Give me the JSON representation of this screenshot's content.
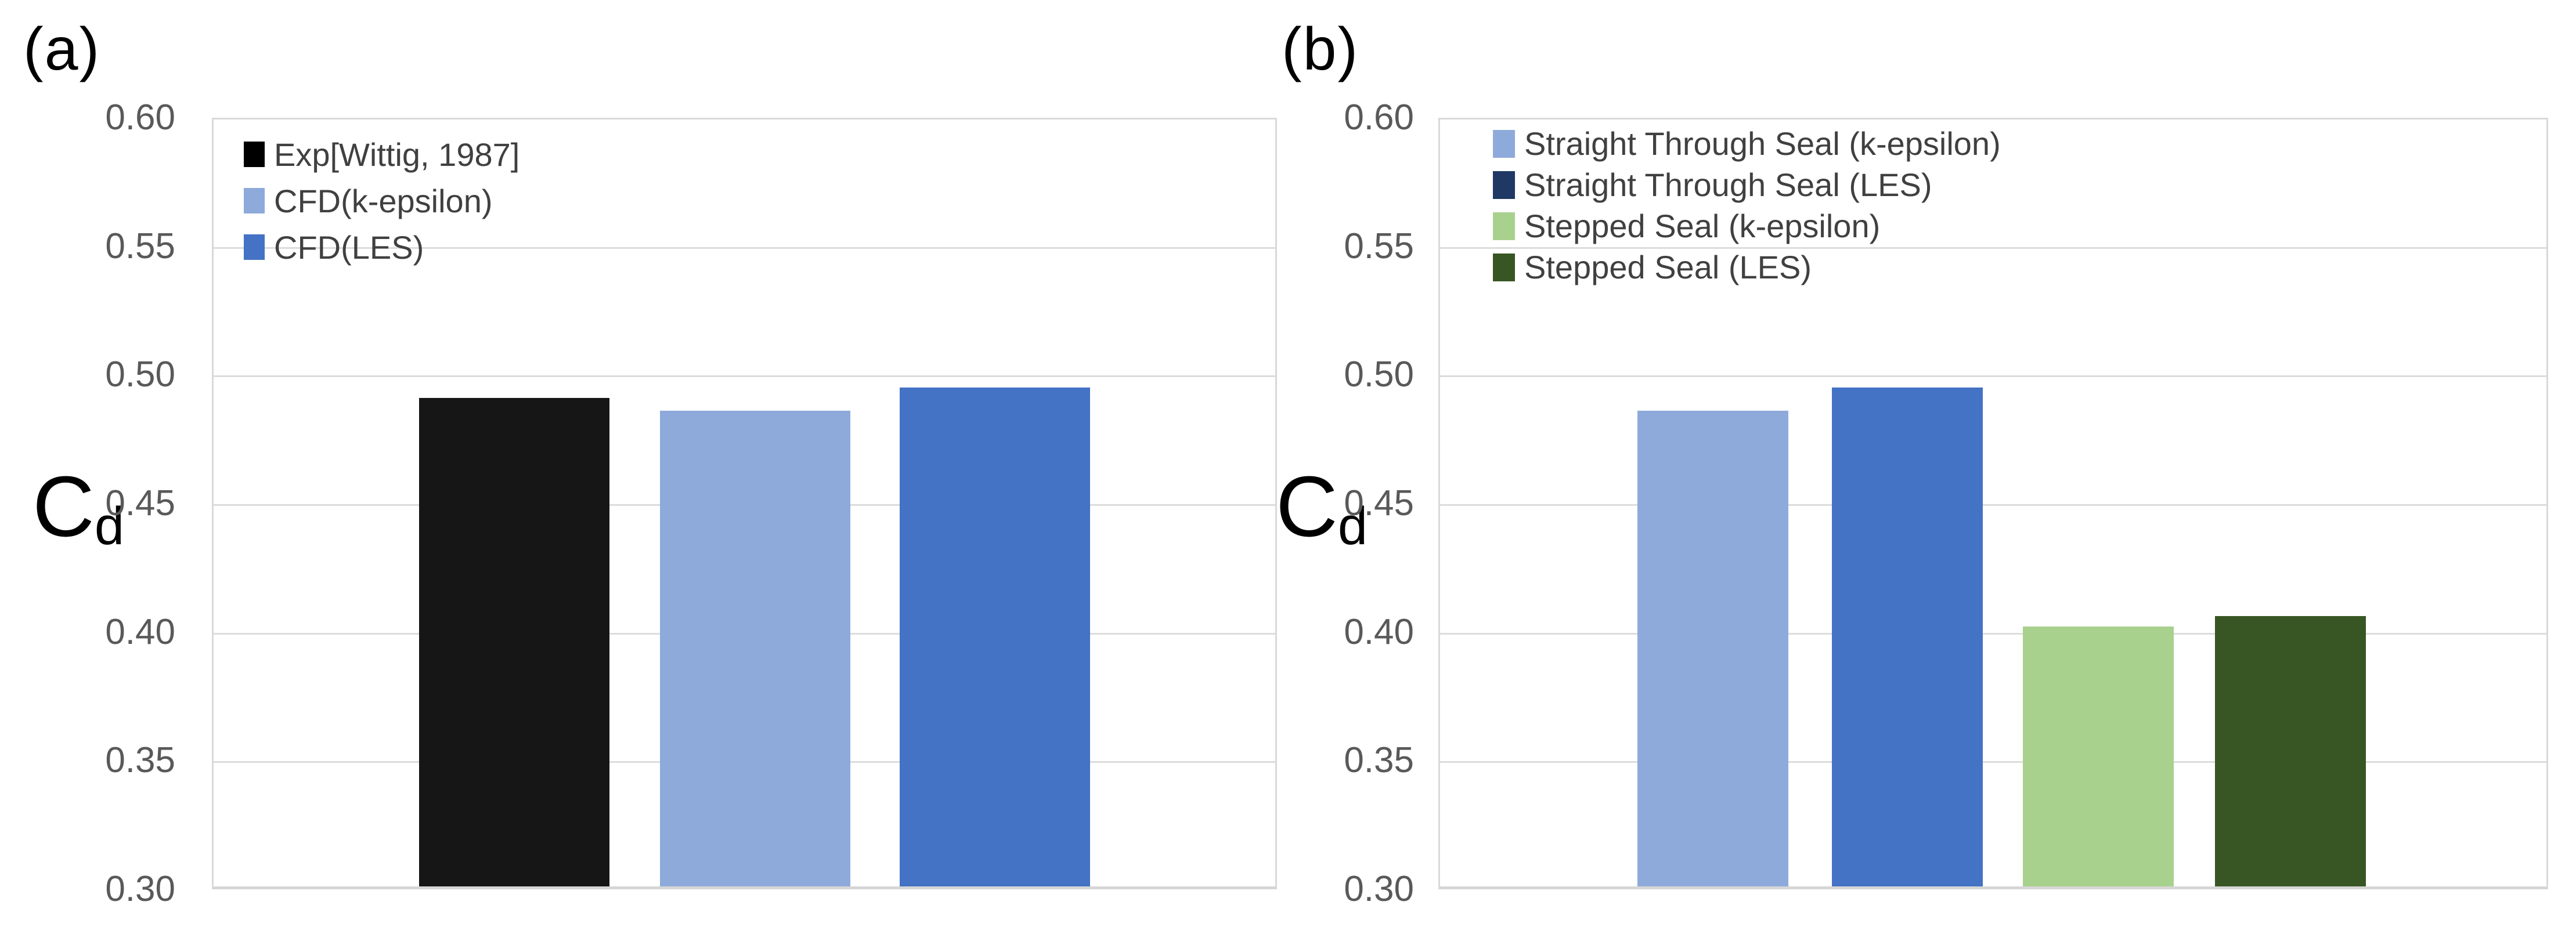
{
  "figure": {
    "background": "#ffffff",
    "description": "Two-panel bar chart figure comparing discharge coefficient Cd"
  },
  "style": {
    "grid_color": "#dcdcdc",
    "plot_border_color": "#d9d9d9",
    "tick_text_color": "#595959",
    "legend_text_color": "#404040",
    "label_color": "#000000"
  },
  "chart_data": [
    {
      "type": "bar",
      "panel_label": "(a)",
      "title": "",
      "xlabel": "",
      "ylabel": "Cd",
      "ylabel_rich": {
        "base": "C",
        "sub": "d"
      },
      "ylim": [
        0.3,
        0.6
      ],
      "ytick_step": 0.05,
      "ytick_labels": [
        "0.60",
        "0.55",
        "0.50",
        "0.45",
        "0.40",
        "0.35",
        "0.30"
      ],
      "grid": true,
      "legend_position": "top-left-inside",
      "categories": [
        "Exp[Wittig, 1987]",
        "CFD(k-epsilon)",
        "CFD(LES)"
      ],
      "values": [
        0.49,
        0.485,
        0.494
      ],
      "bar_colors": [
        "#161616",
        "#8eaadb",
        "#4472c4"
      ],
      "legend": [
        {
          "label": "Exp[Wittig, 1987]",
          "swatch": "#000000"
        },
        {
          "label": "CFD(k-epsilon)",
          "swatch": "#8eaadb"
        },
        {
          "label": "CFD(LES)",
          "swatch": "#4472c4"
        }
      ]
    },
    {
      "type": "bar",
      "panel_label": "(b)",
      "title": "",
      "xlabel": "",
      "ylabel": "Cd",
      "ylabel_rich": {
        "base": "C",
        "sub": "d"
      },
      "ylim": [
        0.3,
        0.6
      ],
      "ytick_step": 0.05,
      "ytick_labels": [
        "0.60",
        "0.55",
        "0.50",
        "0.45",
        "0.40",
        "0.35",
        "0.30"
      ],
      "grid": true,
      "legend_position": "top-left-inside",
      "categories": [
        "Straight Through Seal (k-epsilon)",
        "Straight Through Seal (LES)",
        "Stepped Seal (k-epsilon)",
        "Stepped Seal (LES)"
      ],
      "values": [
        0.485,
        0.494,
        0.401,
        0.405
      ],
      "bar_colors": [
        "#8eaadb",
        "#4472c4",
        "#a9d18e",
        "#375623"
      ],
      "legend": [
        {
          "label": "Straight Through Seal (k-epsilon)",
          "swatch": "#8eaadb"
        },
        {
          "label": "Straight Through Seal (LES)",
          "swatch": "#1f3864"
        },
        {
          "label": "Stepped Seal (k-epsilon)",
          "swatch": "#a9d18e"
        },
        {
          "label": "Stepped Seal (LES)",
          "swatch": "#375623"
        }
      ]
    }
  ]
}
